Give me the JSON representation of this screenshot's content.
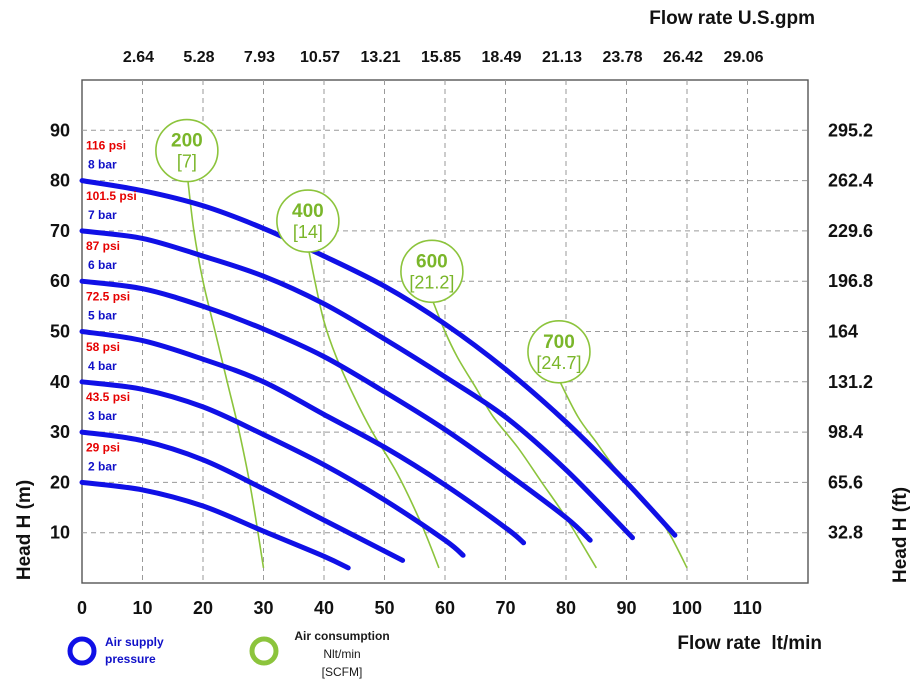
{
  "chart_data": {
    "type": "line",
    "x_axis_bottom": {
      "label": "Flow rate  lt/min",
      "range": [
        0,
        120
      ],
      "ticks": [
        "0",
        "10",
        "20",
        "30",
        "40",
        "50",
        "60",
        "70",
        "80",
        "90",
        "100",
        "110"
      ]
    },
    "x_axis_top": {
      "label": "Flow rate U.S.gpm",
      "ticks": [
        "2.64",
        "5.28",
        "7.93",
        "10.57",
        "13.21",
        "15.85",
        "18.49",
        "21.13",
        "23.78",
        "26.42",
        "29.06"
      ]
    },
    "y_axis_left": {
      "label": "Head H (m)",
      "range": [
        0,
        100
      ],
      "ticks": [
        "10",
        "20",
        "30",
        "40",
        "50",
        "60",
        "70",
        "80",
        "90"
      ]
    },
    "y_axis_right": {
      "label": "Head H (ft)",
      "ticks": [
        "32.8",
        "65.6",
        "98.4",
        "131.2",
        "164",
        "196.8",
        "229.6",
        "262.4",
        "295.2"
      ]
    },
    "grid": true,
    "pressure_series": [
      {
        "psi": "29 psi",
        "bar": "2 bar",
        "x": [
          0,
          10,
          20,
          30,
          40,
          44
        ],
        "y": [
          20,
          18.5,
          15.3,
          10.3,
          5.3,
          3
        ]
      },
      {
        "psi": "43.5 psi",
        "bar": "3 bar",
        "x": [
          0,
          10,
          20,
          30,
          40,
          53
        ],
        "y": [
          30,
          28.3,
          24.5,
          18.7,
          12.5,
          4.5
        ]
      },
      {
        "psi": "58 psi",
        "bar": "4 bar",
        "x": [
          0,
          10,
          20,
          30,
          40,
          50,
          60,
          63
        ],
        "y": [
          40,
          38.5,
          35,
          29.5,
          23.5,
          16.5,
          8.5,
          5.5
        ]
      },
      {
        "psi": "72.5 psi",
        "bar": "5 bar",
        "x": [
          0,
          10,
          20,
          30,
          40,
          50,
          60,
          70,
          73
        ],
        "y": [
          50,
          48.2,
          44.5,
          40,
          33.5,
          27,
          19.5,
          11,
          8
        ]
      },
      {
        "psi": "87 psi",
        "bar": "6 bar",
        "x": [
          0,
          10,
          20,
          30,
          40,
          50,
          60,
          70,
          80,
          84
        ],
        "y": [
          60,
          58.5,
          55,
          50.5,
          45,
          38,
          30.5,
          22,
          13,
          8.5
        ]
      },
      {
        "psi": "101.5 psi",
        "bar": "7 bar",
        "x": [
          0,
          10,
          20,
          30,
          40,
          50,
          60,
          70,
          80,
          91
        ],
        "y": [
          70,
          68.5,
          65,
          61,
          55.5,
          48.5,
          41,
          33,
          22.5,
          9
        ]
      },
      {
        "psi": "116 psi",
        "bar": "8 bar",
        "x": [
          0,
          10,
          20,
          30,
          40,
          50,
          60,
          70,
          80,
          90,
          98
        ],
        "y": [
          80,
          78,
          75,
          70.5,
          65,
          59,
          51.5,
          42.5,
          32,
          20,
          9.5
        ]
      }
    ],
    "air_consumption_series": [
      {
        "value": "200",
        "scfm": "[7]",
        "x": [
          17.5,
          18.5,
          20,
          22,
          24,
          26,
          28,
          30
        ],
        "y": [
          80,
          70,
          60,
          50,
          40,
          30,
          18,
          3
        ]
      },
      {
        "value": "400",
        "scfm": "[14]",
        "x": [
          37.5,
          38.5,
          40,
          42,
          45,
          48,
          52,
          56,
          59
        ],
        "y": [
          66,
          60,
          52,
          45,
          37,
          30,
          22,
          12,
          3
        ]
      },
      {
        "value": "600",
        "scfm": "[21.2]",
        "x": [
          58,
          60,
          62,
          65,
          68,
          72,
          76,
          80,
          85
        ],
        "y": [
          56,
          50,
          45,
          39,
          33,
          27,
          20,
          13,
          3
        ]
      },
      {
        "value": "700",
        "scfm": "[24.7]",
        "x": [
          79,
          82,
          85,
          88,
          91,
          94,
          97,
          100
        ],
        "y": [
          40,
          33,
          28,
          23,
          19,
          15,
          10,
          3
        ]
      }
    ],
    "legend": {
      "placement": "bottom-left",
      "pressure_label": [
        "Air supply",
        "pressure"
      ],
      "consumption_label": [
        "Air consumption",
        "Nlt/min",
        "[SCFM]"
      ]
    },
    "colors": {
      "pressure_curve": "#1010e6",
      "psi_label": "#e60000",
      "bar_label": "#1010c8",
      "consumption_curve": "#8cc43c",
      "consumption_label": "#7ab62a",
      "grid": "#9a9a9a"
    }
  }
}
